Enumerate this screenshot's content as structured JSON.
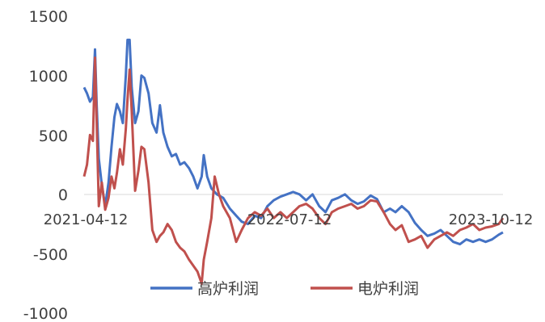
{
  "chart_data": {
    "type": "line",
    "ylim": [
      -1000,
      1500
    ],
    "yticks": [
      1500,
      1000,
      500,
      0,
      -500,
      -1000
    ],
    "x_range": [
      "2021-03-01",
      "2023-11-20"
    ],
    "x_ticks": [
      "2021-04-12",
      "2022-07-12",
      "2023-10-12"
    ],
    "grid": false,
    "legend_position": "bottom",
    "series": [
      {
        "name": "高炉利润",
        "color": "#4472C4",
        "points": [
          [
            "2021-03-01",
            900
          ],
          [
            "2021-03-08",
            850
          ],
          [
            "2021-03-15",
            780
          ],
          [
            "2021-03-22",
            820
          ],
          [
            "2021-03-27",
            1220
          ],
          [
            "2021-03-31",
            750
          ],
          [
            "2021-04-05",
            300
          ],
          [
            "2021-04-12",
            80
          ],
          [
            "2021-04-20",
            -100
          ],
          [
            "2021-04-28",
            100
          ],
          [
            "2021-05-05",
            400
          ],
          [
            "2021-05-12",
            650
          ],
          [
            "2021-05-18",
            760
          ],
          [
            "2021-05-25",
            700
          ],
          [
            "2021-06-01",
            600
          ],
          [
            "2021-06-08",
            1000
          ],
          [
            "2021-06-12",
            1300
          ],
          [
            "2021-06-17",
            1300
          ],
          [
            "2021-06-22",
            900
          ],
          [
            "2021-06-30",
            600
          ],
          [
            "2021-07-08",
            700
          ],
          [
            "2021-07-15",
            1000
          ],
          [
            "2021-07-22",
            980
          ],
          [
            "2021-08-01",
            850
          ],
          [
            "2021-08-10",
            600
          ],
          [
            "2021-08-20",
            520
          ],
          [
            "2021-08-28",
            750
          ],
          [
            "2021-09-05",
            520
          ],
          [
            "2021-09-15",
            400
          ],
          [
            "2021-09-25",
            320
          ],
          [
            "2021-10-05",
            340
          ],
          [
            "2021-10-15",
            250
          ],
          [
            "2021-10-25",
            270
          ],
          [
            "2021-11-05",
            220
          ],
          [
            "2021-11-15",
            150
          ],
          [
            "2021-11-25",
            50
          ],
          [
            "2021-12-05",
            150
          ],
          [
            "2021-12-10",
            330
          ],
          [
            "2021-12-18",
            150
          ],
          [
            "2021-12-28",
            50
          ],
          [
            "2022-01-10",
            0
          ],
          [
            "2022-01-25",
            -30
          ],
          [
            "2022-02-10",
            -120
          ],
          [
            "2022-02-25",
            -180
          ],
          [
            "2022-03-10",
            -230
          ],
          [
            "2022-03-25",
            -250
          ],
          [
            "2022-04-10",
            -180
          ],
          [
            "2022-04-25",
            -200
          ],
          [
            "2022-05-10",
            -100
          ],
          [
            "2022-05-25",
            -50
          ],
          [
            "2022-06-10",
            -20
          ],
          [
            "2022-06-25",
            0
          ],
          [
            "2022-07-10",
            20
          ],
          [
            "2022-07-25",
            0
          ],
          [
            "2022-08-10",
            -50
          ],
          [
            "2022-08-25",
            0
          ],
          [
            "2022-09-10",
            -100
          ],
          [
            "2022-09-25",
            -150
          ],
          [
            "2022-10-10",
            -50
          ],
          [
            "2022-10-25",
            -30
          ],
          [
            "2022-11-10",
            0
          ],
          [
            "2022-11-25",
            -50
          ],
          [
            "2022-12-10",
            -80
          ],
          [
            "2022-12-25",
            -60
          ],
          [
            "2023-01-10",
            -10
          ],
          [
            "2023-01-25",
            -40
          ],
          [
            "2023-02-10",
            -150
          ],
          [
            "2023-02-25",
            -120
          ],
          [
            "2023-03-10",
            -150
          ],
          [
            "2023-03-25",
            -100
          ],
          [
            "2023-04-10",
            -150
          ],
          [
            "2023-04-25",
            -240
          ],
          [
            "2023-05-10",
            -300
          ],
          [
            "2023-05-25",
            -350
          ],
          [
            "2023-06-10",
            -330
          ],
          [
            "2023-06-25",
            -300
          ],
          [
            "2023-07-10",
            -350
          ],
          [
            "2023-07-25",
            -400
          ],
          [
            "2023-08-10",
            -420
          ],
          [
            "2023-08-25",
            -380
          ],
          [
            "2023-09-10",
            -400
          ],
          [
            "2023-09-25",
            -380
          ],
          [
            "2023-10-10",
            -400
          ],
          [
            "2023-10-25",
            -380
          ],
          [
            "2023-11-10",
            -340
          ],
          [
            "2023-11-20",
            -320
          ]
        ]
      },
      {
        "name": "电炉利润",
        "color": "#C0504D",
        "points": [
          [
            "2021-03-01",
            150
          ],
          [
            "2021-03-08",
            250
          ],
          [
            "2021-03-15",
            500
          ],
          [
            "2021-03-22",
            450
          ],
          [
            "2021-03-27",
            1150
          ],
          [
            "2021-03-31",
            600
          ],
          [
            "2021-04-05",
            -100
          ],
          [
            "2021-04-12",
            100
          ],
          [
            "2021-04-20",
            -130
          ],
          [
            "2021-04-28",
            -30
          ],
          [
            "2021-05-05",
            150
          ],
          [
            "2021-05-12",
            50
          ],
          [
            "2021-05-18",
            180
          ],
          [
            "2021-05-25",
            380
          ],
          [
            "2021-06-01",
            250
          ],
          [
            "2021-06-08",
            550
          ],
          [
            "2021-06-12",
            800
          ],
          [
            "2021-06-17",
            1050
          ],
          [
            "2021-06-22",
            700
          ],
          [
            "2021-06-30",
            30
          ],
          [
            "2021-07-08",
            200
          ],
          [
            "2021-07-15",
            400
          ],
          [
            "2021-07-22",
            380
          ],
          [
            "2021-08-01",
            100
          ],
          [
            "2021-08-10",
            -300
          ],
          [
            "2021-08-20",
            -400
          ],
          [
            "2021-08-28",
            -350
          ],
          [
            "2021-09-05",
            -320
          ],
          [
            "2021-09-15",
            -250
          ],
          [
            "2021-09-25",
            -300
          ],
          [
            "2021-10-05",
            -400
          ],
          [
            "2021-10-15",
            -450
          ],
          [
            "2021-10-25",
            -480
          ],
          [
            "2021-11-05",
            -550
          ],
          [
            "2021-11-15",
            -600
          ],
          [
            "2021-11-25",
            -650
          ],
          [
            "2021-12-05",
            -750
          ],
          [
            "2021-12-10",
            -550
          ],
          [
            "2021-12-18",
            -400
          ],
          [
            "2021-12-28",
            -200
          ],
          [
            "2022-01-05",
            150
          ],
          [
            "2022-01-15",
            0
          ],
          [
            "2022-01-25",
            -100
          ],
          [
            "2022-02-10",
            -200
          ],
          [
            "2022-02-25",
            -400
          ],
          [
            "2022-03-10",
            -300
          ],
          [
            "2022-03-25",
            -200
          ],
          [
            "2022-04-10",
            -150
          ],
          [
            "2022-04-25",
            -180
          ],
          [
            "2022-05-10",
            -120
          ],
          [
            "2022-05-25",
            -200
          ],
          [
            "2022-06-10",
            -150
          ],
          [
            "2022-06-25",
            -200
          ],
          [
            "2022-07-10",
            -150
          ],
          [
            "2022-07-25",
            -100
          ],
          [
            "2022-08-10",
            -80
          ],
          [
            "2022-08-25",
            -120
          ],
          [
            "2022-09-10",
            -200
          ],
          [
            "2022-09-25",
            -250
          ],
          [
            "2022-10-10",
            -150
          ],
          [
            "2022-10-25",
            -120
          ],
          [
            "2022-11-10",
            -100
          ],
          [
            "2022-11-25",
            -80
          ],
          [
            "2022-12-10",
            -120
          ],
          [
            "2022-12-25",
            -100
          ],
          [
            "2023-01-10",
            -50
          ],
          [
            "2023-01-25",
            -60
          ],
          [
            "2023-02-10",
            -150
          ],
          [
            "2023-02-25",
            -250
          ],
          [
            "2023-03-10",
            -300
          ],
          [
            "2023-03-25",
            -260
          ],
          [
            "2023-04-10",
            -400
          ],
          [
            "2023-04-25",
            -380
          ],
          [
            "2023-05-10",
            -350
          ],
          [
            "2023-05-25",
            -450
          ],
          [
            "2023-06-10",
            -380
          ],
          [
            "2023-06-25",
            -350
          ],
          [
            "2023-07-10",
            -320
          ],
          [
            "2023-07-25",
            -350
          ],
          [
            "2023-08-10",
            -300
          ],
          [
            "2023-08-25",
            -280
          ],
          [
            "2023-09-10",
            -250
          ],
          [
            "2023-09-25",
            -300
          ],
          [
            "2023-10-10",
            -280
          ],
          [
            "2023-10-25",
            -270
          ],
          [
            "2023-11-10",
            -250
          ],
          [
            "2023-11-20",
            -200
          ]
        ]
      }
    ]
  }
}
